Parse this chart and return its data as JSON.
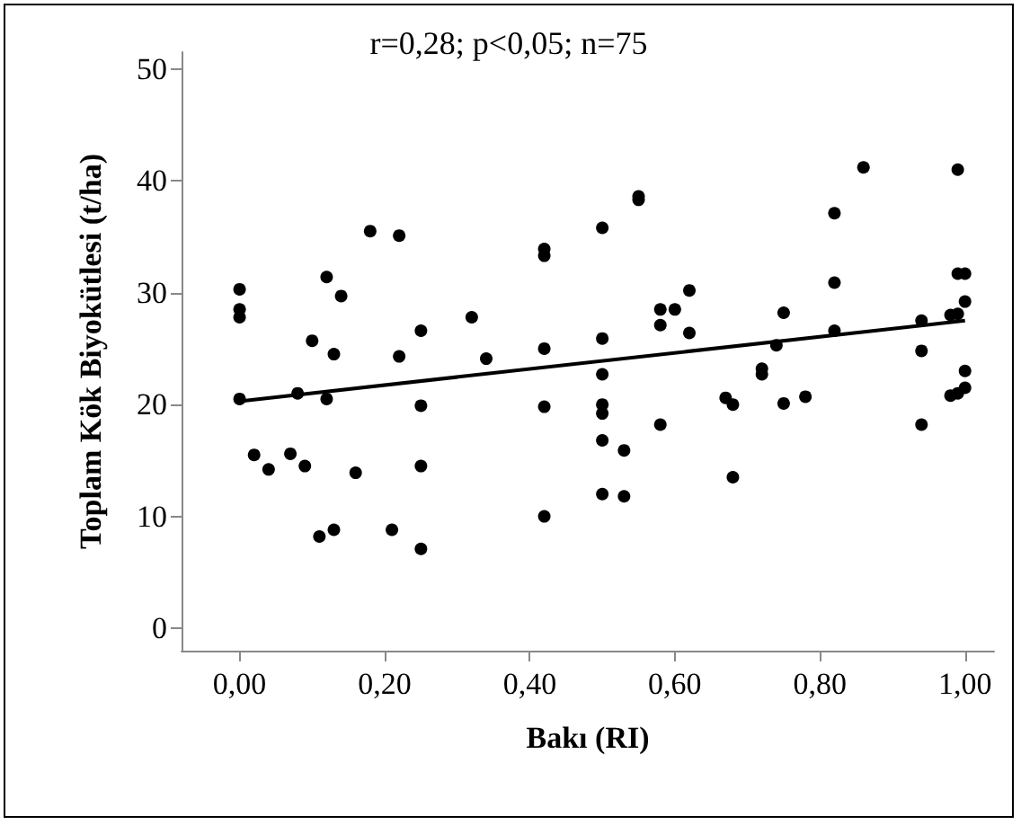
{
  "chart_data": {
    "type": "scatter",
    "xlabel": "Bakı (RI)",
    "ylabel": "Toplam Kök Biyokütlesi (t/ha)",
    "annotations": [
      "r=0,28; p<0,05; n=75"
    ],
    "xlim": [
      -0.08,
      1.04
    ],
    "ylim": [
      -2,
      51.5
    ],
    "xticks": [
      {
        "value": 0,
        "label": "0,00"
      },
      {
        "value": 0.2,
        "label": "0,20"
      },
      {
        "value": 0.4,
        "label": "0,40"
      },
      {
        "value": 0.6,
        "label": "0,60"
      },
      {
        "value": 0.8,
        "label": "0,80"
      },
      {
        "value": 1,
        "label": "1,00"
      }
    ],
    "yticks": [
      0,
      10,
      20,
      30,
      40,
      50
    ],
    "grid": false,
    "marker": "circle",
    "series": [
      {
        "color": "#000000",
        "x": [
          0,
          0,
          0,
          0,
          0.02,
          0.04,
          0.07,
          0.08,
          0.09,
          0.1,
          0.11,
          0.12,
          0.12,
          0.13,
          0.13,
          0.14,
          0.16,
          0.18,
          0.21,
          0.22,
          0.22,
          0.25,
          0.25,
          0.25,
          0.25,
          0.32,
          0.34,
          0.42,
          0.42,
          0.42,
          0.42,
          0.42,
          0.5,
          0.5,
          0.5,
          0.5,
          0.5,
          0.5,
          0.5,
          0.53,
          0.53,
          0.55,
          0.55,
          0.58,
          0.58,
          0.58,
          0.6,
          0.62,
          0.62,
          0.67,
          0.68,
          0.68,
          0.72,
          0.72,
          0.74,
          0.75,
          0.75,
          0.78,
          0.82,
          0.82,
          0.82,
          0.86,
          0.94,
          0.94,
          0.94,
          0.98,
          0.98,
          0.99,
          0.99,
          0.99,
          0.99,
          1,
          1,
          1,
          1
        ],
        "values": [
          30.3,
          28.5,
          27.8,
          20.5,
          15.5,
          14.2,
          15.6,
          21.0,
          14.5,
          25.7,
          8.2,
          31.4,
          20.5,
          8.8,
          24.5,
          29.7,
          13.9,
          35.5,
          8.8,
          35.1,
          24.3,
          26.6,
          19.9,
          14.5,
          7.1,
          27.8,
          24.1,
          33.9,
          33.3,
          25.0,
          19.8,
          10.0,
          35.8,
          25.9,
          22.7,
          20.0,
          19.2,
          16.8,
          12.0,
          11.8,
          15.9,
          38.6,
          38.3,
          18.2,
          27.1,
          28.5,
          28.5,
          26.4,
          30.2,
          20.6,
          13.5,
          20.0,
          23.2,
          22.7,
          25.3,
          28.2,
          20.1,
          20.7,
          37.1,
          30.9,
          26.6,
          41.2,
          27.5,
          24.8,
          18.2,
          20.8,
          28.0,
          41.0,
          31.7,
          28.1,
          21.0,
          31.7,
          29.2,
          23.0,
          21.5
        ]
      },
      {
        "type": "line",
        "color": "#000000",
        "x": [
          0,
          1
        ],
        "values": [
          20.3,
          27.5
        ],
        "marker": "none",
        "line_style": "solid"
      }
    ]
  }
}
